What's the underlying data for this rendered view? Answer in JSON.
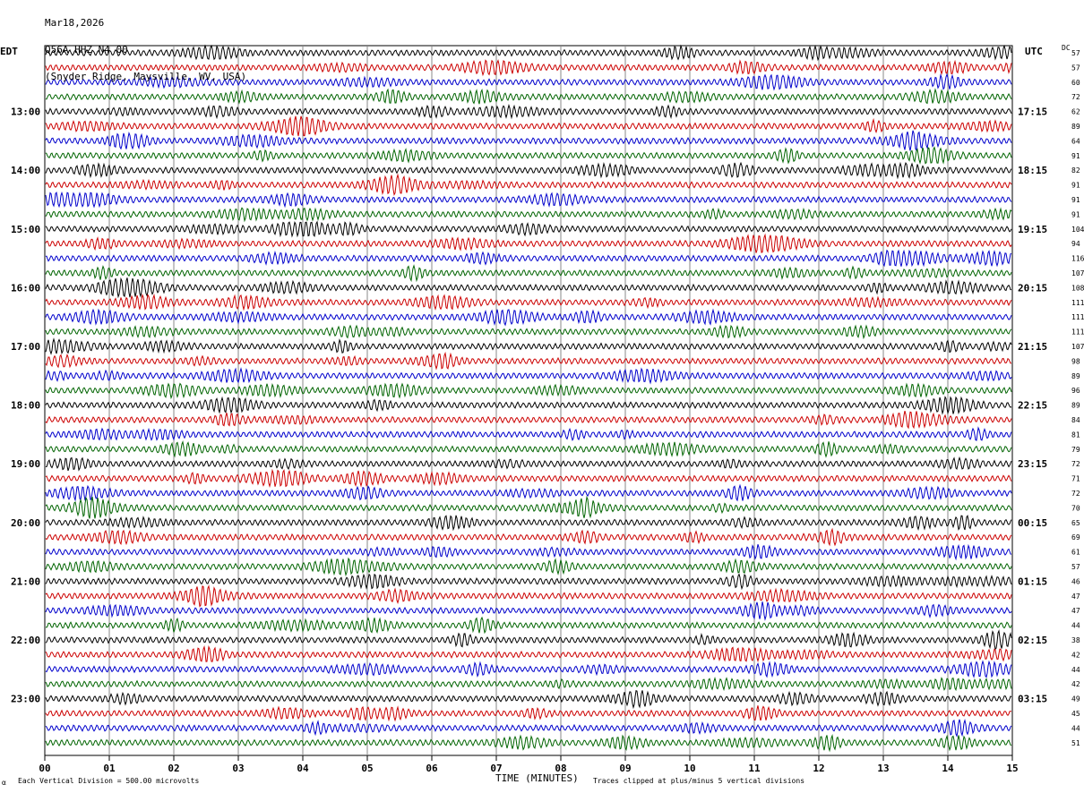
{
  "header": {
    "date": "Mar18,2026",
    "station": "Q56A HHZ N4 00",
    "location": "(Snyder Ridge, Maysville, WV, USA)"
  },
  "left_zone": "EDT",
  "right_zone": "UTC",
  "dc_label": "DC",
  "footer": {
    "scale_note": "Each Vertical Division =  500.00 microvolts",
    "clip_note": "Traces clipped at plus/minus 5 vertical divisions",
    "corner_mark": "α"
  },
  "chart_data": {
    "type": "line",
    "xlabel": "TIME (MINUTES)",
    "xlim": [
      0,
      15
    ],
    "x_ticks": [
      "00",
      "01",
      "02",
      "03",
      "04",
      "05",
      "06",
      "07",
      "08",
      "09",
      "10",
      "11",
      "12",
      "13",
      "14",
      "15"
    ],
    "trace_colors": [
      "#000000",
      "#cc0000",
      "#0000cc",
      "#006400"
    ],
    "left_hour_labels": [
      "13:00",
      "14:00",
      "15:00",
      "16:00",
      "17:00",
      "18:00",
      "19:00",
      "20:00",
      "21:00",
      "22:00",
      "23:00"
    ],
    "right_hour_labels": [
      "17:15",
      "18:15",
      "19:15",
      "20:15",
      "21:15",
      "22:15",
      "23:15",
      "00:15",
      "01:15",
      "02:15",
      "03:15"
    ],
    "dc_offsets": [
      57,
      57,
      60,
      72,
      62,
      89,
      64,
      91,
      82,
      91,
      91,
      91,
      104,
      94,
      116,
      107,
      108,
      111,
      111,
      111,
      107,
      98,
      89,
      96,
      89,
      84,
      81,
      79,
      72,
      71,
      72,
      70,
      65,
      69,
      61,
      57,
      46,
      47,
      47,
      44,
      38,
      42,
      44,
      42,
      49,
      45,
      44,
      51
    ]
  }
}
